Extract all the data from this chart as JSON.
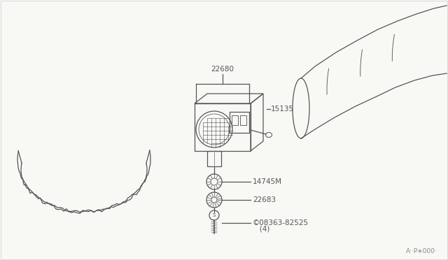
{
  "bg_color": "#f8f8f5",
  "line_color": "#555555",
  "label_22680": "22680",
  "label_15135": "15135",
  "label_14745M": "14745M",
  "label_22683": "22683",
  "label_08363_line1": "©08363-82525",
  "label_08363_line2": "   (4)",
  "label_ref": "A··P∗000·",
  "font_size_labels": 7.5,
  "font_size_ref": 6.5
}
